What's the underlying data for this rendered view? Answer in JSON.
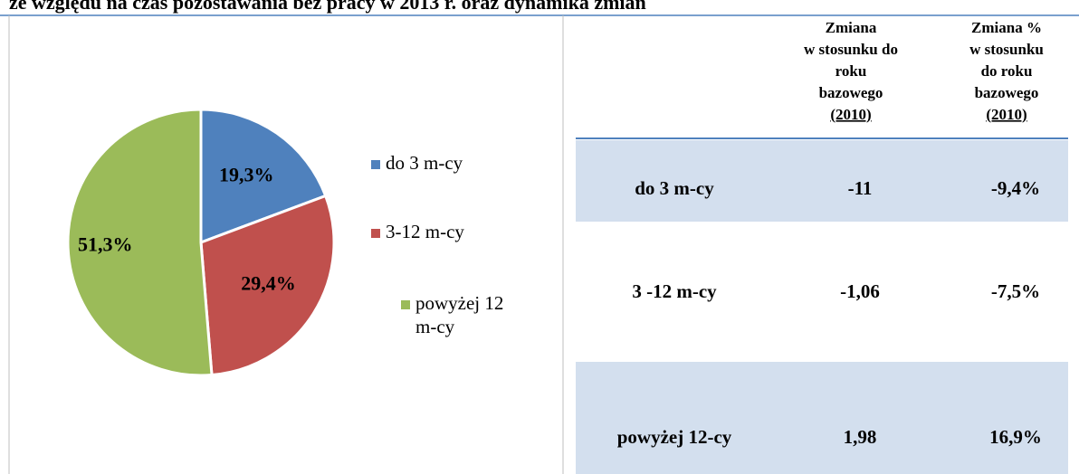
{
  "header": {
    "title": "ze względu na czas pozostawania bez pracy w 2013 r. oraz dynamika zmian"
  },
  "chart_data": {
    "type": "pie",
    "categories": [
      "do 3 m-cy",
      "3-12 m-cy",
      "powyżej 12 m-cy"
    ],
    "values": [
      19.3,
      29.4,
      51.3
    ],
    "value_labels": [
      "19,3%",
      "29,4%",
      "51,3%"
    ],
    "colors": [
      "#4f81bd",
      "#c0504d",
      "#9bbb59"
    ],
    "legend": "right"
  },
  "table": {
    "header": [
      [],
      [
        "Zmiana",
        "w stosunku do",
        "roku",
        "bazowego",
        "(2010)"
      ],
      [
        "Zmiana %",
        "w stosunku",
        "do roku",
        "bazowego",
        "(2010)"
      ]
    ],
    "rows": [
      [
        "do 3 m-cy",
        "-11",
        "-9,4%"
      ],
      [
        "3 -12 m-cy",
        "-1,06",
        "-7,5%"
      ],
      [
        "powyżej 12-cy",
        "1,98",
        "16,9%"
      ]
    ]
  }
}
